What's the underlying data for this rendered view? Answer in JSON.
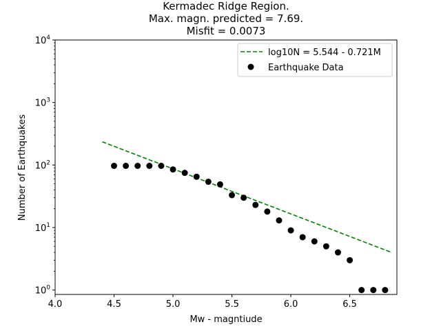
{
  "chart_data": {
    "type": "scatter",
    "title_lines": [
      "Kermadec Ridge Region.",
      "Max. magn. predicted = 7.69.",
      "Misfit = 0.0073"
    ],
    "xlabel": "Mw - magntiude",
    "ylabel": "Number of Earthquakes",
    "xlim": [
      4.0,
      6.9
    ],
    "ylim": [
      0.85,
      10000
    ],
    "yscale": "log",
    "grid": false,
    "legend_position": "upper right",
    "x_ticks": [
      {
        "value": 4.0,
        "label": "4.0"
      },
      {
        "value": 4.5,
        "label": "4.5"
      },
      {
        "value": 5.0,
        "label": "5.0"
      },
      {
        "value": 5.5,
        "label": "5.5"
      },
      {
        "value": 6.0,
        "label": "6.0"
      },
      {
        "value": 6.5,
        "label": "6.5"
      }
    ],
    "y_ticks": [
      {
        "value": 1,
        "base": "10",
        "exp": "0"
      },
      {
        "value": 10,
        "base": "10",
        "exp": "1"
      },
      {
        "value": 100,
        "base": "10",
        "exp": "2"
      },
      {
        "value": 1000,
        "base": "10",
        "exp": "3"
      },
      {
        "value": 10000,
        "base": "10",
        "exp": "4"
      }
    ],
    "series": [
      {
        "name": "log10N = 5.544 - 0.721M",
        "kind": "line",
        "style": "dashed",
        "color": "#008000",
        "x": [
          4.4,
          6.85
        ],
        "intercept": 5.544,
        "slope": -0.721
      },
      {
        "name": "Earthquake Data",
        "kind": "scatter",
        "color": "#000000",
        "x": [
          4.5,
          4.6,
          4.7,
          4.8,
          4.9,
          5.0,
          5.1,
          5.2,
          5.3,
          5.4,
          5.5,
          5.6,
          5.7,
          5.8,
          5.9,
          6.0,
          6.1,
          6.2,
          6.3,
          6.4,
          6.5,
          6.6,
          6.7,
          6.8
        ],
        "y": [
          97,
          97,
          97,
          97,
          97,
          85,
          75,
          65,
          54,
          49,
          33,
          30,
          23,
          18,
          13,
          9,
          7,
          6,
          5,
          4,
          3,
          1,
          1,
          1
        ]
      }
    ]
  }
}
